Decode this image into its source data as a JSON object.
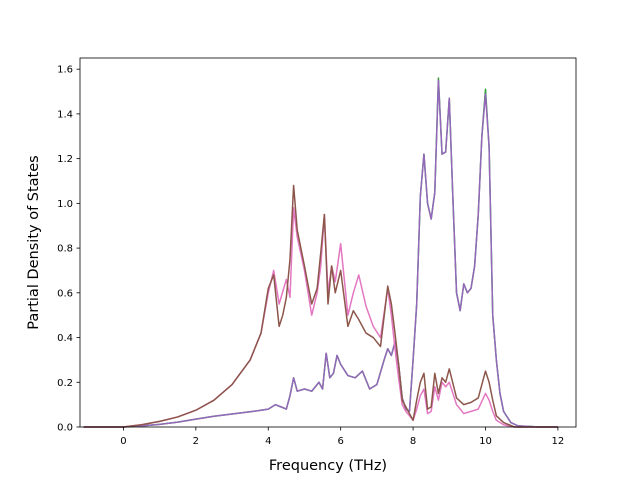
{
  "chart_data": {
    "type": "line",
    "title": "",
    "xlabel": "Frequency (THz)",
    "ylabel": "Partial Density of States",
    "xlim": [
      -1.2,
      12.5
    ],
    "ylim": [
      0.0,
      1.65
    ],
    "xticks": [
      0,
      2,
      4,
      6,
      8,
      10,
      12
    ],
    "yticks": [
      0.0,
      0.2,
      0.4,
      0.6,
      0.8,
      1.0,
      1.2,
      1.4,
      1.6
    ],
    "grid": false,
    "legend": "none",
    "series": [
      {
        "color": "#2ca02c",
        "x": [
          -1.1,
          0.0,
          0.5,
          1.0,
          1.5,
          2.0,
          2.5,
          3.0,
          3.5,
          3.8,
          4.0,
          4.2,
          4.35,
          4.5,
          4.6,
          4.7,
          4.8,
          5.0,
          5.2,
          5.4,
          5.5,
          5.6,
          5.7,
          5.8,
          5.9,
          6.0,
          6.2,
          6.4,
          6.6,
          6.8,
          7.0,
          7.2,
          7.3,
          7.4,
          7.5,
          7.6,
          7.7,
          7.8,
          7.9,
          8.0,
          8.1,
          8.2,
          8.3,
          8.4,
          8.5,
          8.6,
          8.7,
          8.8,
          8.9,
          9.0,
          9.1,
          9.2,
          9.3,
          9.4,
          9.5,
          9.6,
          9.7,
          9.8,
          9.9,
          10.0,
          10.1,
          10.2,
          10.3,
          10.4,
          10.5,
          10.7,
          10.9,
          11.5,
          12.0
        ],
        "y": [
          0.0,
          0.0,
          0.005,
          0.012,
          0.022,
          0.035,
          0.048,
          0.058,
          0.068,
          0.075,
          0.08,
          0.1,
          0.09,
          0.08,
          0.14,
          0.22,
          0.16,
          0.17,
          0.16,
          0.2,
          0.17,
          0.33,
          0.22,
          0.24,
          0.32,
          0.28,
          0.23,
          0.22,
          0.25,
          0.17,
          0.19,
          0.3,
          0.35,
          0.32,
          0.38,
          0.28,
          0.13,
          0.08,
          0.07,
          0.3,
          0.55,
          1.03,
          1.22,
          1.0,
          0.93,
          1.05,
          1.56,
          1.22,
          1.23,
          1.47,
          1.02,
          0.6,
          0.52,
          0.64,
          0.6,
          0.62,
          0.72,
          0.95,
          1.3,
          1.51,
          1.25,
          0.5,
          0.3,
          0.15,
          0.07,
          0.02,
          0.005,
          0.0,
          0.0
        ]
      },
      {
        "color": "#9467bd",
        "x": [
          -1.1,
          0.0,
          0.5,
          1.0,
          1.5,
          2.0,
          2.5,
          3.0,
          3.5,
          3.8,
          4.0,
          4.2,
          4.35,
          4.5,
          4.6,
          4.7,
          4.8,
          5.0,
          5.2,
          5.4,
          5.5,
          5.6,
          5.7,
          5.8,
          5.9,
          6.0,
          6.2,
          6.4,
          6.6,
          6.8,
          7.0,
          7.2,
          7.3,
          7.4,
          7.5,
          7.6,
          7.7,
          7.8,
          7.9,
          8.0,
          8.1,
          8.2,
          8.3,
          8.4,
          8.5,
          8.6,
          8.7,
          8.8,
          8.9,
          9.0,
          9.1,
          9.2,
          9.3,
          9.4,
          9.5,
          9.6,
          9.7,
          9.8,
          9.9,
          10.0,
          10.1,
          10.2,
          10.3,
          10.4,
          10.5,
          10.7,
          10.9,
          11.5,
          12.0
        ],
        "y": [
          0.0,
          0.0,
          0.005,
          0.012,
          0.022,
          0.035,
          0.048,
          0.058,
          0.068,
          0.075,
          0.08,
          0.1,
          0.09,
          0.08,
          0.14,
          0.22,
          0.16,
          0.17,
          0.16,
          0.2,
          0.17,
          0.33,
          0.22,
          0.24,
          0.32,
          0.28,
          0.23,
          0.22,
          0.25,
          0.17,
          0.19,
          0.3,
          0.35,
          0.32,
          0.38,
          0.28,
          0.13,
          0.08,
          0.07,
          0.3,
          0.55,
          1.03,
          1.22,
          1.0,
          0.93,
          1.05,
          1.55,
          1.22,
          1.23,
          1.47,
          1.02,
          0.6,
          0.52,
          0.64,
          0.6,
          0.62,
          0.72,
          0.95,
          1.3,
          1.49,
          1.25,
          0.5,
          0.3,
          0.15,
          0.07,
          0.02,
          0.005,
          0.0,
          0.0
        ]
      },
      {
        "color": "#e377c2",
        "x": [
          -1.1,
          0.0,
          0.5,
          1.0,
          1.5,
          2.0,
          2.5,
          3.0,
          3.5,
          3.8,
          4.0,
          4.15,
          4.3,
          4.5,
          4.6,
          4.7,
          4.8,
          5.0,
          5.2,
          5.35,
          5.45,
          5.55,
          5.65,
          5.75,
          5.85,
          6.0,
          6.2,
          6.35,
          6.5,
          6.7,
          6.9,
          7.1,
          7.3,
          7.4,
          7.5,
          7.6,
          7.7,
          7.8,
          7.9,
          8.0,
          8.1,
          8.2,
          8.3,
          8.4,
          8.5,
          8.6,
          8.7,
          8.8,
          8.9,
          9.0,
          9.2,
          9.4,
          9.6,
          9.8,
          10.0,
          10.1,
          10.2,
          10.3,
          10.5,
          10.8,
          11.0,
          12.0
        ],
        "y": [
          0.0,
          0.0,
          0.01,
          0.025,
          0.045,
          0.075,
          0.12,
          0.19,
          0.3,
          0.42,
          0.6,
          0.7,
          0.55,
          0.66,
          0.58,
          0.98,
          0.85,
          0.7,
          0.5,
          0.6,
          0.72,
          0.95,
          0.6,
          0.72,
          0.65,
          0.82,
          0.5,
          0.6,
          0.68,
          0.54,
          0.45,
          0.4,
          0.62,
          0.5,
          0.35,
          0.22,
          0.1,
          0.07,
          0.05,
          0.03,
          0.08,
          0.14,
          0.17,
          0.06,
          0.07,
          0.18,
          0.12,
          0.2,
          0.18,
          0.2,
          0.1,
          0.06,
          0.07,
          0.08,
          0.15,
          0.12,
          0.07,
          0.03,
          0.01,
          0.0,
          0.0,
          0.0
        ]
      },
      {
        "color": "#8c564b",
        "x": [
          -1.1,
          0.0,
          0.5,
          1.0,
          1.5,
          2.0,
          2.5,
          3.0,
          3.5,
          3.8,
          4.0,
          4.15,
          4.3,
          4.4,
          4.5,
          4.6,
          4.7,
          4.8,
          5.0,
          5.2,
          5.35,
          5.45,
          5.55,
          5.65,
          5.75,
          5.85,
          6.0,
          6.2,
          6.35,
          6.5,
          6.7,
          6.9,
          7.1,
          7.3,
          7.4,
          7.5,
          7.6,
          7.7,
          7.8,
          7.9,
          8.0,
          8.1,
          8.2,
          8.3,
          8.4,
          8.5,
          8.6,
          8.7,
          8.8,
          8.9,
          9.0,
          9.2,
          9.4,
          9.6,
          9.8,
          10.0,
          10.1,
          10.2,
          10.3,
          10.5,
          10.8,
          11.0,
          12.0
        ],
        "y": [
          0.0,
          0.0,
          0.01,
          0.025,
          0.045,
          0.075,
          0.12,
          0.19,
          0.3,
          0.42,
          0.62,
          0.68,
          0.45,
          0.5,
          0.58,
          0.75,
          1.08,
          0.88,
          0.72,
          0.55,
          0.62,
          0.78,
          0.95,
          0.55,
          0.72,
          0.6,
          0.7,
          0.45,
          0.52,
          0.48,
          0.42,
          0.4,
          0.36,
          0.63,
          0.55,
          0.42,
          0.28,
          0.12,
          0.09,
          0.06,
          0.03,
          0.12,
          0.2,
          0.24,
          0.08,
          0.09,
          0.24,
          0.15,
          0.22,
          0.2,
          0.26,
          0.13,
          0.1,
          0.11,
          0.13,
          0.25,
          0.2,
          0.12,
          0.05,
          0.02,
          0.0,
          0.0,
          0.0
        ]
      }
    ]
  }
}
